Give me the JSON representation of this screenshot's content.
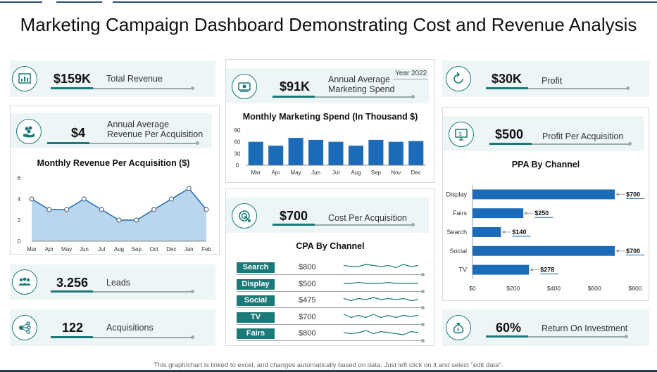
{
  "title": "Marketing Campaign Dashboard Demonstrating Cost and Revenue Analysis",
  "footer": "This graph/chart is linked to excel, and changes automatically based on data. Just left click on it and select \"edit data\".",
  "colors": {
    "accent": "#1a7a78",
    "bar": "#1c6bb8",
    "area": "#b9d6ee",
    "panel_bg": "#eef5f7"
  },
  "kpis": {
    "total_revenue": {
      "value": "$159K",
      "label": "Total Revenue",
      "icon": "chart-icon"
    },
    "avg_revenue_per_acq": {
      "value": "$4",
      "label_line1": "Annual Average",
      "label_line2": "Revenue  Per Acquisition",
      "icon": "money-hand-icon"
    },
    "leads": {
      "value": "3.256",
      "label": "Leads",
      "icon": "people-icon"
    },
    "acquisitions": {
      "value": "122",
      "label": "Acquisitions",
      "icon": "network-icon"
    },
    "marketing_spend": {
      "value": "$91K",
      "label_line1": "Annual Average",
      "label_line2": "Marketing Spend",
      "year": "Year 2022",
      "icon": "cash-icon"
    },
    "cost_per_acq": {
      "value": "$700",
      "label": "Cost Per Acquisition",
      "icon": "target-icon"
    },
    "profit": {
      "value": "$30K",
      "label": "Profit",
      "icon": "refresh-icon"
    },
    "profit_per_acq": {
      "value": "$500",
      "label": "Profit Per Acquisition",
      "icon": "monitor-dollar-icon"
    },
    "roi": {
      "value": "60%",
      "label": "Return  On Investment",
      "icon": "money-bag-icon"
    }
  },
  "chart_data": [
    {
      "id": "revenue_per_acq",
      "type": "area",
      "title": "Monthly Revenue Per Acquisition ($)",
      "categories": [
        "Mar",
        "Apr",
        "May",
        "Jun",
        "Jul",
        "Aug",
        "Sep",
        "Oct",
        "Dec",
        "Jan",
        "Feb"
      ],
      "values": [
        4,
        3,
        3,
        4,
        3,
        2,
        2,
        3,
        4,
        5,
        3
      ],
      "ylim": [
        0,
        6
      ],
      "yticks": [
        "0",
        "2",
        "4",
        "6"
      ]
    },
    {
      "id": "marketing_spend",
      "type": "bar",
      "title": "Monthly Marketing Spend (In  Thousand $)",
      "categories": [
        "Mar",
        "Apr",
        "May",
        "Jun",
        "Jul",
        "Aug",
        "Sep",
        "Nov",
        "Dec"
      ],
      "values": [
        60,
        50,
        70,
        65,
        60,
        50,
        65,
        60,
        62
      ],
      "ylim": [
        0,
        90
      ],
      "yticks": [
        "0",
        "30",
        "60",
        "90"
      ]
    },
    {
      "id": "cpa_channel",
      "type": "table",
      "title": "CPA By Channel",
      "rows": [
        {
          "channel": "Search",
          "value": "$800",
          "spark": [
            5,
            4,
            4,
            6,
            5,
            4,
            5,
            3,
            6,
            4,
            5
          ]
        },
        {
          "channel": "Display",
          "value": "$500",
          "spark": [
            4,
            4,
            5,
            4,
            4,
            4,
            5,
            4,
            4,
            4,
            4
          ]
        },
        {
          "channel": "Social",
          "value": "$475",
          "spark": [
            5,
            3,
            5,
            4,
            6,
            4,
            5,
            4,
            5,
            3,
            4
          ]
        },
        {
          "channel": "TV",
          "value": "$700",
          "spark": [
            6,
            3,
            5,
            3,
            6,
            3,
            5,
            3,
            5,
            4,
            5
          ]
        },
        {
          "channel": "Fairs",
          "value": "$800",
          "spark": [
            4,
            3,
            4,
            6,
            3,
            5,
            4,
            3,
            2,
            5,
            4
          ]
        }
      ]
    },
    {
      "id": "ppa_channel",
      "type": "bar",
      "orientation": "horizontal",
      "title": "PPA By Channel",
      "categories": [
        "Display",
        "Fairs",
        "Search",
        "Social",
        "TV"
      ],
      "values": [
        700,
        250,
        140,
        700,
        278
      ],
      "labels": [
        "$700",
        "$250",
        "$140",
        "$700",
        "$278"
      ],
      "xlim": [
        0,
        800
      ],
      "xticks": [
        "$0",
        "$200",
        "$400",
        "$600",
        "$800"
      ]
    }
  ]
}
